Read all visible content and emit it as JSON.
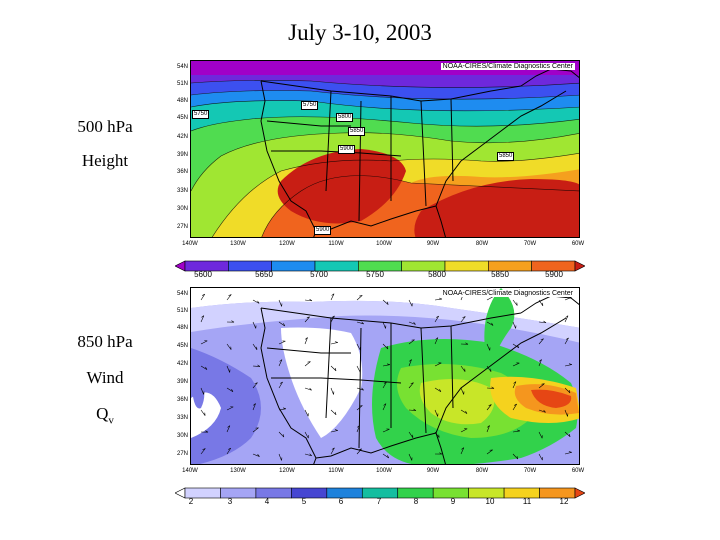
{
  "title": "July 3-10, 2003",
  "top_panel": {
    "label_line1": "500 hPa",
    "label_line2": "Height",
    "credit": "NOAA-CIRES/Climate Diagnostics Center",
    "contour_labels": [
      "5750",
      "5750",
      "5800",
      "5850",
      "5900",
      "5850",
      "5900"
    ],
    "colorbar_ticks": [
      "5600",
      "5650",
      "5700",
      "5750",
      "5800",
      "5850",
      "5900"
    ]
  },
  "bottom_panel": {
    "label_line1": "850 hPa",
    "label_line2": "Wind",
    "label_line3": "Q",
    "label_line3_sub": "v",
    "credit": "NOAA-CIRES/Climate Diagnostics Center",
    "colorbar_ticks": [
      "2",
      "3",
      "4",
      "5",
      "6",
      "7",
      "8",
      "9",
      "10",
      "11",
      "12"
    ]
  },
  "lat_ticks": [
    "54N",
    "51N",
    "48N",
    "45N",
    "42N",
    "39N",
    "36N",
    "33N",
    "30N",
    "27N"
  ],
  "lon_ticks": [
    "140W",
    "130W",
    "120W",
    "110W",
    "100W",
    "90W",
    "80W",
    "70W",
    "60W"
  ],
  "colors": {
    "height_scale": [
      "#a000c8",
      "#6e28dc",
      "#3c50f0",
      "#1e8cf0",
      "#14c8b4",
      "#50dc50",
      "#a0e632",
      "#f0dc28",
      "#f5a01e",
      "#f0641e",
      "#c81e14"
    ],
    "qv_scale": [
      "#ffffff",
      "#d2d2ff",
      "#a5a5f5",
      "#7878e6",
      "#4646d2",
      "#1e82dc",
      "#14bea0",
      "#32d24b",
      "#78e132",
      "#c8e628",
      "#f5d21e",
      "#f5961e",
      "#e64614"
    ]
  }
}
